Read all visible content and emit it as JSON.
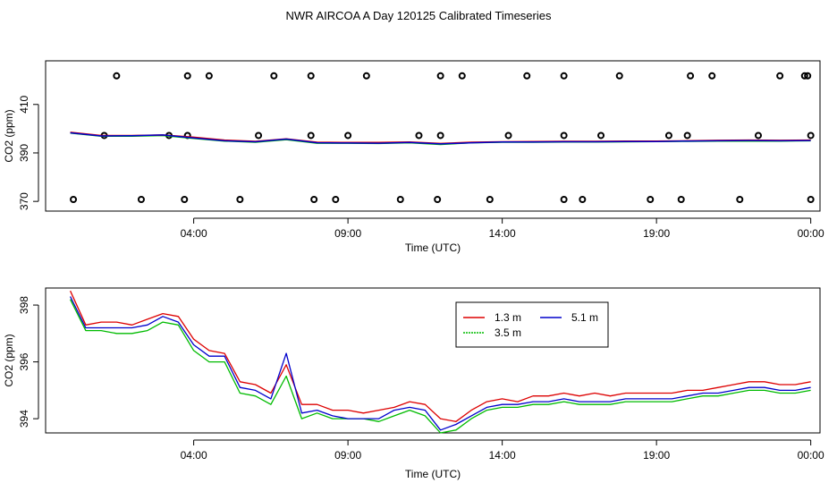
{
  "title": "NWR AIRCOA A  Day 120125  Calibrated Timeseries",
  "chart_data": [
    {
      "type": "scatter+line",
      "panel": "top",
      "xlabel": "Time (UTC)",
      "ylabel": "CO2 (ppm)",
      "xlim": [
        -0.8,
        24.3
      ],
      "ylim": [
        366,
        428
      ],
      "x_ticks": [
        4,
        9,
        14,
        19,
        24
      ],
      "x_tick_labels": [
        "04:00",
        "09:00",
        "14:00",
        "19:00",
        "00:00"
      ],
      "y_ticks": [
        370,
        390,
        410
      ],
      "y_tick_labels": [
        "370",
        "390",
        "410"
      ],
      "calibration_points": {
        "high": {
          "y": 421.8,
          "x": [
            1.5,
            3.8,
            4.5,
            6.6,
            7.8,
            9.6,
            12.0,
            12.7,
            14.8,
            16.0,
            17.8,
            20.1,
            20.8,
            23.0,
            23.8,
            23.9
          ]
        },
        "mid": {
          "y": 397.2,
          "x": [
            1.1,
            3.2,
            3.8,
            6.1,
            7.8,
            9.0,
            11.3,
            12.0,
            14.2,
            16.0,
            17.2,
            19.4,
            20.0,
            22.3,
            24.0
          ]
        },
        "low": {
          "y": 370.8,
          "x": [
            0.1,
            2.3,
            3.7,
            5.5,
            7.9,
            8.6,
            10.7,
            11.9,
            13.6,
            16.0,
            16.6,
            18.8,
            19.8,
            21.7,
            24.0
          ]
        }
      },
      "series": [
        {
          "name": "1.3 m",
          "color": "#dd0000",
          "x": [
            0,
            1,
            2,
            3,
            4,
            5,
            6,
            7,
            8,
            9,
            10,
            11,
            12,
            13,
            14,
            15,
            16,
            17,
            18,
            19,
            20,
            21,
            22,
            23,
            24
          ],
          "values": [
            398.5,
            397.2,
            397.2,
            397.4,
            396.5,
            395.3,
            394.8,
            395.8,
            394.4,
            394.3,
            394.3,
            394.5,
            393.9,
            394.4,
            394.6,
            394.7,
            394.8,
            394.8,
            394.9,
            394.9,
            395.0,
            395.2,
            395.3,
            395.2,
            395.3
          ]
        },
        {
          "name": "3.5 m",
          "color": "#00bb00",
          "x": [
            0,
            1,
            2,
            3,
            4,
            5,
            6,
            7,
            8,
            9,
            10,
            11,
            12,
            13,
            14,
            15,
            16,
            17,
            18,
            19,
            20,
            21,
            22,
            23,
            24
          ],
          "values": [
            398.2,
            396.9,
            396.9,
            397.2,
            396.0,
            394.9,
            394.4,
            395.5,
            394.0,
            394.0,
            393.9,
            394.2,
            393.5,
            394.2,
            394.4,
            394.4,
            394.5,
            394.5,
            394.6,
            394.7,
            394.8,
            394.9,
            394.9,
            394.9,
            395.0
          ]
        },
        {
          "name": "5.1 m",
          "color": "#0000cc",
          "x": [
            0,
            1,
            2,
            3,
            4,
            5,
            6,
            7,
            8,
            9,
            10,
            11,
            12,
            13,
            14,
            15,
            16,
            17,
            18,
            19,
            20,
            21,
            22,
            23,
            24
          ],
          "values": [
            398.3,
            397.0,
            397.1,
            397.4,
            396.2,
            395.0,
            394.6,
            395.7,
            394.2,
            394.1,
            394.0,
            394.3,
            393.7,
            394.2,
            394.5,
            394.5,
            394.6,
            394.6,
            394.7,
            394.7,
            394.9,
            395.0,
            395.1,
            395.0,
            395.1
          ]
        }
      ]
    },
    {
      "type": "line",
      "panel": "bottom",
      "xlabel": "Time (UTC)",
      "ylabel": "CO2 (ppm)",
      "xlim": [
        -0.8,
        24.3
      ],
      "ylim": [
        393.5,
        398.6
      ],
      "x_ticks": [
        4,
        9,
        14,
        19,
        24
      ],
      "x_tick_labels": [
        "04:00",
        "09:00",
        "14:00",
        "19:00",
        "00:00"
      ],
      "y_ticks": [
        394,
        396,
        398
      ],
      "y_tick_labels": [
        "394",
        "396",
        "398"
      ],
      "legend_position": "top-center",
      "series": [
        {
          "name": "1.3 m",
          "color": "#dd0000",
          "x": [
            0,
            0.5,
            1,
            1.5,
            2,
            2.5,
            3,
            3.5,
            4,
            4.5,
            5,
            5.5,
            6,
            6.5,
            7,
            7.5,
            8,
            8.5,
            9,
            9.5,
            10,
            10.5,
            11,
            11.5,
            12,
            12.5,
            13,
            13.5,
            14,
            14.5,
            15,
            15.5,
            16,
            16.5,
            17,
            17.5,
            18,
            18.5,
            19,
            19.5,
            20,
            20.5,
            21,
            21.5,
            22,
            22.5,
            23,
            23.5,
            24
          ],
          "values": [
            398.5,
            397.3,
            397.4,
            397.4,
            397.3,
            397.5,
            397.7,
            397.6,
            396.8,
            396.4,
            396.3,
            395.3,
            395.2,
            394.9,
            395.9,
            394.5,
            394.5,
            394.3,
            394.3,
            394.2,
            394.3,
            394.4,
            394.6,
            394.5,
            394.0,
            393.9,
            394.3,
            394.6,
            394.7,
            394.6,
            394.8,
            394.8,
            394.9,
            394.8,
            394.9,
            394.8,
            394.9,
            394.9,
            394.9,
            394.9,
            395.0,
            395.0,
            395.1,
            395.2,
            395.3,
            395.3,
            395.2,
            395.2,
            395.3
          ]
        },
        {
          "name": "3.5 m",
          "color": "#00bb00",
          "x": [
            0,
            0.5,
            1,
            1.5,
            2,
            2.5,
            3,
            3.5,
            4,
            4.5,
            5,
            5.5,
            6,
            6.5,
            7,
            7.5,
            8,
            8.5,
            9,
            9.5,
            10,
            10.5,
            11,
            11.5,
            12,
            12.5,
            13,
            13.5,
            14,
            14.5,
            15,
            15.5,
            16,
            16.5,
            17,
            17.5,
            18,
            18.5,
            19,
            19.5,
            20,
            20.5,
            21,
            21.5,
            22,
            22.5,
            23,
            23.5,
            24
          ],
          "values": [
            398.2,
            397.1,
            397.1,
            397.0,
            397.0,
            397.1,
            397.4,
            397.3,
            396.4,
            396.0,
            396.0,
            394.9,
            394.8,
            394.5,
            395.5,
            394.0,
            394.2,
            394.0,
            394.0,
            394.0,
            393.9,
            394.1,
            394.3,
            394.1,
            393.5,
            393.6,
            394.0,
            394.3,
            394.4,
            394.4,
            394.5,
            394.5,
            394.6,
            394.5,
            394.5,
            394.5,
            394.6,
            394.6,
            394.6,
            394.6,
            394.7,
            394.8,
            394.8,
            394.9,
            395.0,
            395.0,
            394.9,
            394.9,
            395.0
          ]
        },
        {
          "name": "5.1 m",
          "color": "#0000cc",
          "x": [
            0,
            0.5,
            1,
            1.5,
            2,
            2.5,
            3,
            3.5,
            4,
            4.5,
            5,
            5.5,
            6,
            6.5,
            7,
            7.5,
            8,
            8.5,
            9,
            9.5,
            10,
            10.5,
            11,
            11.5,
            12,
            12.5,
            13,
            13.5,
            14,
            14.5,
            15,
            15.5,
            16,
            16.5,
            17,
            17.5,
            18,
            18.5,
            19,
            19.5,
            20,
            20.5,
            21,
            21.5,
            22,
            22.5,
            23,
            23.5,
            24
          ],
          "values": [
            398.3,
            397.2,
            397.2,
            397.2,
            397.2,
            397.3,
            397.6,
            397.4,
            396.6,
            396.2,
            396.2,
            395.1,
            395.0,
            394.7,
            396.3,
            394.2,
            394.3,
            394.1,
            394.0,
            394.0,
            394.0,
            394.3,
            394.4,
            394.3,
            393.6,
            393.8,
            394.1,
            394.4,
            394.5,
            394.5,
            394.6,
            394.6,
            394.7,
            394.6,
            394.6,
            394.6,
            394.7,
            394.7,
            394.7,
            394.7,
            394.8,
            394.9,
            394.9,
            395.0,
            395.1,
            395.1,
            395.0,
            395.0,
            395.1
          ]
        }
      ]
    }
  ]
}
